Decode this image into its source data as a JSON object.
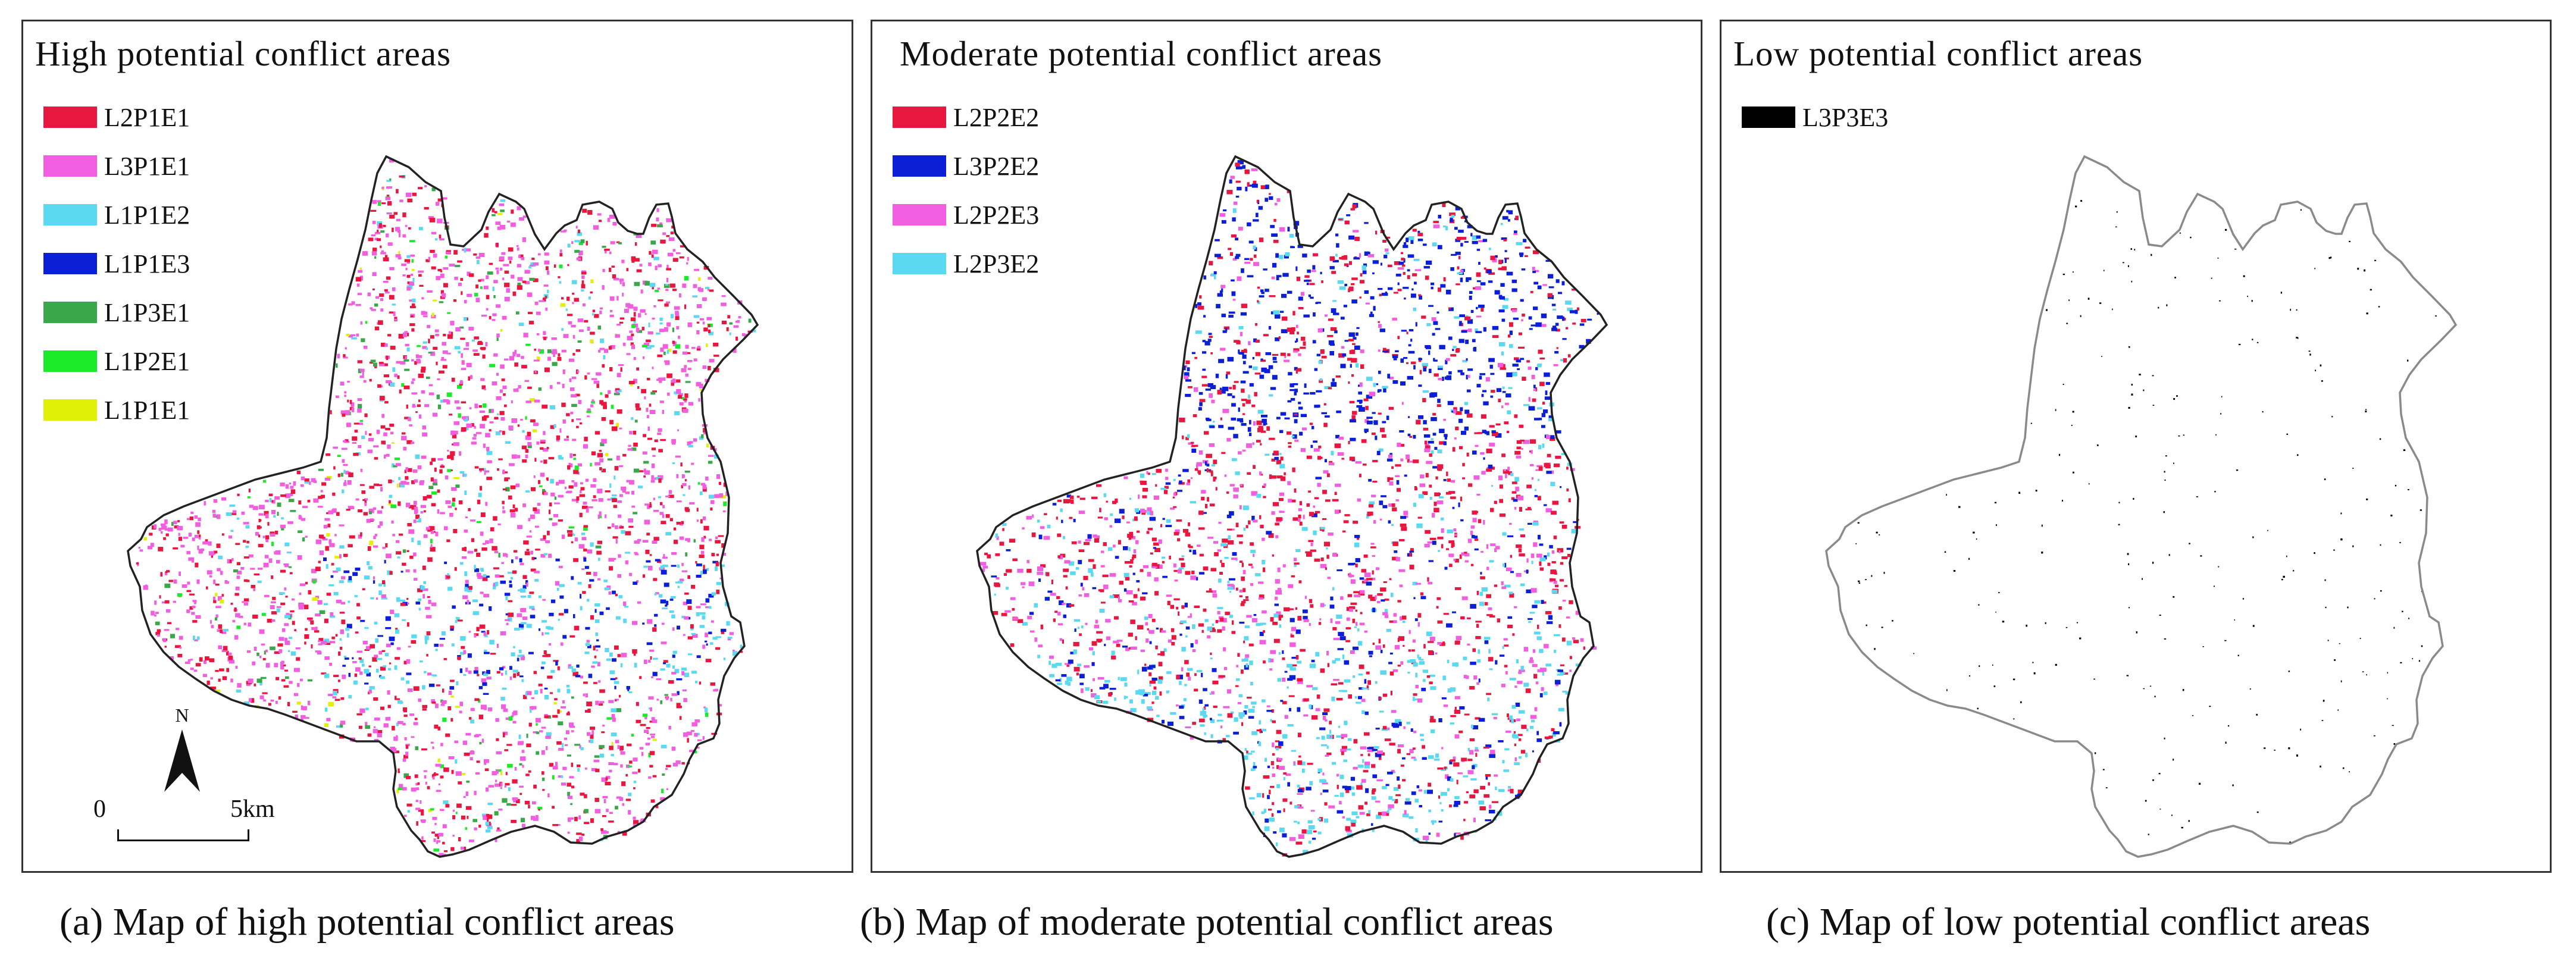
{
  "panels": [
    {
      "title": "High potential conflict areas",
      "legend": [
        {
          "label": "L2P1E1",
          "color": "#e8173f"
        },
        {
          "label": "L3P1E1",
          "color": "#f25ee0"
        },
        {
          "label": "L1P1E2",
          "color": "#5ad9f0"
        },
        {
          "label": "L1P1E3",
          "color": "#0a1fd6"
        },
        {
          "label": "L1P3E1",
          "color": "#3aa84a"
        },
        {
          "label": "L1P2E1",
          "color": "#1bea2a"
        },
        {
          "label": "L1P1E1",
          "color": "#e2ef08"
        }
      ],
      "caption": "(a) Map of high potential conflict areas",
      "outline_color": "#222222"
    },
    {
      "title": "Moderate potential conflict areas",
      "legend": [
        {
          "label": "L2P2E2",
          "color": "#e8173f"
        },
        {
          "label": "L3P2E2",
          "color": "#0a1fd6"
        },
        {
          "label": "L2P2E3",
          "color": "#f25ee0"
        },
        {
          "label": "L2P3E2",
          "color": "#5ad9f0"
        }
      ],
      "caption": "(b) Map of moderate potential conflict areas",
      "outline_color": "#222222"
    },
    {
      "title": "Low potential conflict areas",
      "legend": [
        {
          "label": "L3P3E3",
          "color": "#000000"
        }
      ],
      "caption": "(c) Map of low potential conflict areas",
      "outline_color": "#8a8a8a"
    }
  ],
  "north_arrow": {
    "label": "N"
  },
  "scale_bar": {
    "start": "0",
    "end": "5km"
  }
}
